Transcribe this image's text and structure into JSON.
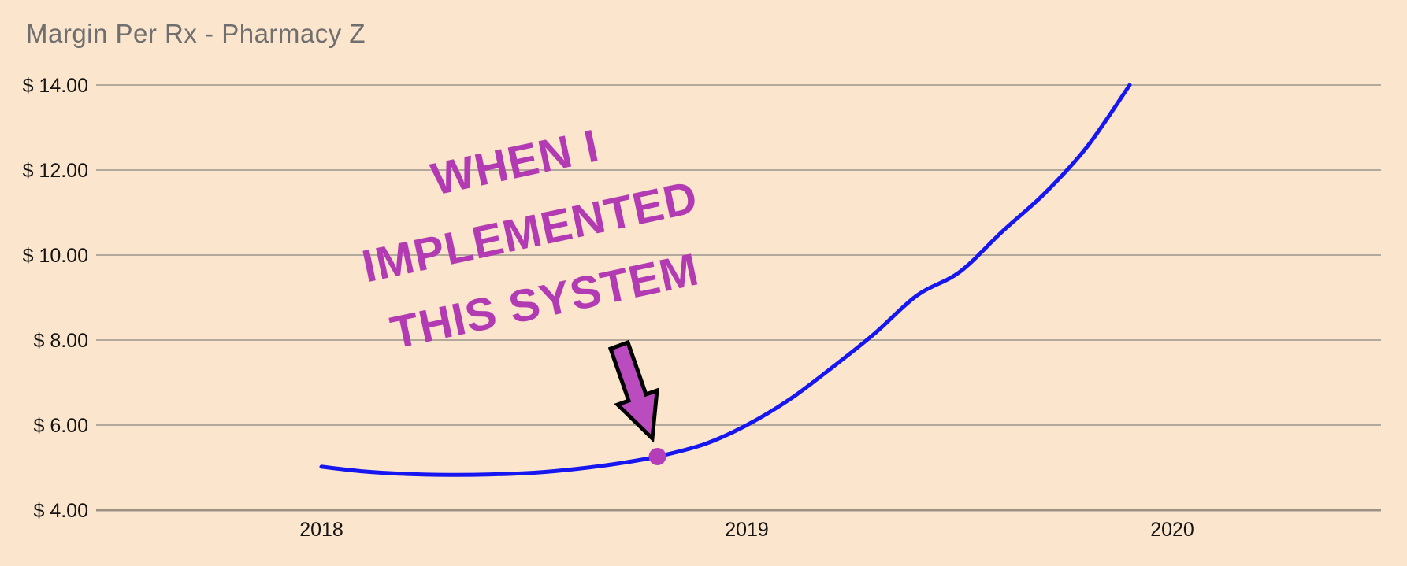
{
  "title": "Margin Per Rx - Pharmacy Z",
  "annotation": {
    "lines": [
      "WHEN I",
      "IMPLEMENTED",
      "THIS SYSTEM"
    ],
    "rotation_deg": -12
  },
  "colors": {
    "background": "#fce5cd",
    "title": "#6f6f6f",
    "tick_label": "#141414",
    "gridline": "#b3a89c",
    "axis_line": "#9a9184",
    "series_line": "#1616f0",
    "marker_dot": "#b53db8",
    "annotation_text": "#b23ab2",
    "arrow_fill": "#bb4cc0",
    "arrow_stroke": "#000000"
  },
  "chart_data": {
    "type": "line",
    "title": "Margin Per Rx - Pharmacy Z",
    "xlabel": "",
    "ylabel": "",
    "legend": false,
    "grid": true,
    "ylim": [
      4,
      14
    ],
    "xlim": [
      2017.47,
      2020.49
    ],
    "y_ticks": [
      {
        "value": 14,
        "label": "$ 14.00"
      },
      {
        "value": 12,
        "label": "$ 12.00"
      },
      {
        "value": 10,
        "label": "$ 10.00"
      },
      {
        "value": 8,
        "label": "$ 8.00"
      },
      {
        "value": 6,
        "label": "$ 6.00"
      },
      {
        "value": 4,
        "label": "$ 4.00"
      }
    ],
    "x_ticks": [
      {
        "value": 2018,
        "label": "2018"
      },
      {
        "value": 2019,
        "label": "2019"
      },
      {
        "value": 2020,
        "label": "2020"
      }
    ],
    "series": [
      {
        "name": "Margin Per Rx",
        "points": [
          [
            2018.0,
            5.02
          ],
          [
            2018.1,
            4.91
          ],
          [
            2018.2,
            4.85
          ],
          [
            2018.3,
            4.83
          ],
          [
            2018.4,
            4.84
          ],
          [
            2018.5,
            4.88
          ],
          [
            2018.6,
            4.97
          ],
          [
            2018.7,
            5.1
          ],
          [
            2018.79,
            5.26
          ],
          [
            2018.9,
            5.55
          ],
          [
            2019.0,
            6.0
          ],
          [
            2019.1,
            6.6
          ],
          [
            2019.2,
            7.35
          ],
          [
            2019.3,
            8.15
          ],
          [
            2019.4,
            9.05
          ],
          [
            2019.5,
            9.6
          ],
          [
            2019.6,
            10.55
          ],
          [
            2019.7,
            11.45
          ],
          [
            2019.8,
            12.55
          ],
          [
            2019.9,
            14.0
          ]
        ]
      }
    ],
    "marker": {
      "x": 2018.79,
      "y": 5.26,
      "note": "WHEN I IMPLEMENTED THIS SYSTEM"
    }
  }
}
